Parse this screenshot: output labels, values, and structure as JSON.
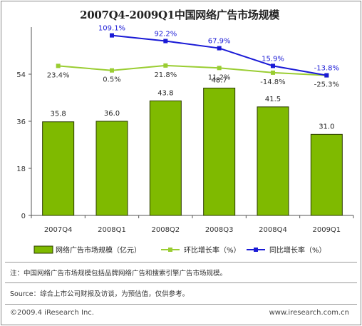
{
  "chart_data": {
    "title": "2007Q4-2009Q1中国网络广告市场规模",
    "type": "bar+line",
    "categories": [
      "2007Q4",
      "2008Q1",
      "2008Q2",
      "2008Q3",
      "2008Q4",
      "2009Q1"
    ],
    "bar_series": {
      "name": "网络广告市场规模（亿元）",
      "values": [
        35.8,
        36.0,
        43.8,
        48.7,
        41.5,
        31.0
      ],
      "value_labels": [
        "35.8",
        "36.0",
        "43.8",
        "48.7",
        "41.5",
        "31.0"
      ],
      "color": "#7fba00"
    },
    "line_series": [
      {
        "name": "环比增长率（%）",
        "labels": [
          "23.4%",
          "0.5%",
          "21.8%",
          "11.2%",
          "-14.8%",
          "-25.3%"
        ],
        "color": "#9acd32",
        "level": [
          0.794,
          0.77,
          0.796,
          0.783,
          0.758,
          0.744
        ]
      },
      {
        "name": "同比增长率（%）",
        "labels": [
          "",
          "109.1%",
          "92.2%",
          "67.9%",
          "15.9%",
          "-13.8%"
        ],
        "color": "#1a1ad6",
        "level": [
          null,
          0.956,
          0.926,
          0.888,
          0.794,
          0.744
        ]
      }
    ],
    "y_ticks": [
      "0",
      "18",
      "36",
      "54"
    ],
    "ylim": [
      0,
      72
    ],
    "grid": false,
    "legend_position": "bottom"
  },
  "notes": {
    "note1": "注：中国网络广告市场规模包括品牌网络广告和搜索引擎广告市场规模。",
    "source": "Source：综合上市公司财报及访谈，为预估值，仅供参考。"
  },
  "footer": {
    "copyright": "©2009.4 iResearch Inc.",
    "url": "www.iresearch.com.cn"
  }
}
